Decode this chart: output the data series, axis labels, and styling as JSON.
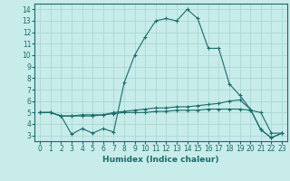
{
  "xlabel": "Humidex (Indice chaleur)",
  "background_color": "#c8ecea",
  "grid_color": "#a8d8d4",
  "line_color": "#1a6b6b",
  "xlim": [
    -0.5,
    23.5
  ],
  "ylim": [
    2.5,
    14.5
  ],
  "xticks": [
    0,
    1,
    2,
    3,
    4,
    5,
    6,
    7,
    8,
    9,
    10,
    11,
    12,
    13,
    14,
    15,
    16,
    17,
    18,
    19,
    20,
    21,
    22,
    23
  ],
  "yticks": [
    3,
    4,
    5,
    6,
    7,
    8,
    9,
    10,
    11,
    12,
    13,
    14
  ],
  "series": [
    {
      "x": [
        0,
        1,
        2,
        3,
        4,
        5,
        6,
        7,
        8,
        9,
        10,
        11,
        12,
        13,
        14,
        15,
        16,
        17,
        18,
        19,
        20,
        21,
        22,
        23
      ],
      "y": [
        5.0,
        5.0,
        4.7,
        3.1,
        3.6,
        3.2,
        3.6,
        3.3,
        7.6,
        10.0,
        11.6,
        13.0,
        13.2,
        13.0,
        14.0,
        13.2,
        10.6,
        10.6,
        7.5,
        6.5,
        5.3,
        3.5,
        2.8,
        3.2
      ]
    },
    {
      "x": [
        0,
        1,
        2,
        3,
        4,
        5,
        6,
        7,
        8,
        9,
        10,
        11,
        12,
        13,
        14,
        15,
        16,
        17,
        18,
        19,
        20,
        21,
        22,
        23
      ],
      "y": [
        5.0,
        5.0,
        4.7,
        4.7,
        4.7,
        4.7,
        4.8,
        5.0,
        5.1,
        5.2,
        5.3,
        5.4,
        5.4,
        5.5,
        5.5,
        5.6,
        5.7,
        5.8,
        6.0,
        6.1,
        5.3,
        3.5,
        2.8,
        3.2
      ]
    },
    {
      "x": [
        0,
        1,
        2,
        3,
        4,
        5,
        6,
        7,
        8,
        9,
        10,
        11,
        12,
        13,
        14,
        15,
        16,
        17,
        18,
        19,
        20,
        21,
        22,
        23
      ],
      "y": [
        5.0,
        5.0,
        4.7,
        4.7,
        4.8,
        4.8,
        4.8,
        4.9,
        5.0,
        5.0,
        5.0,
        5.1,
        5.1,
        5.2,
        5.2,
        5.2,
        5.3,
        5.3,
        5.3,
        5.3,
        5.2,
        5.0,
        3.2,
        3.2
      ]
    }
  ]
}
